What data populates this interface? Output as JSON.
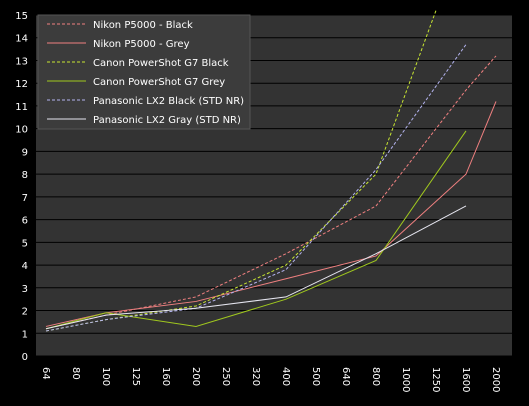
{
  "chart_data": {
    "type": "line",
    "title": "",
    "xlabel": "",
    "ylabel": "",
    "categories": [
      "64",
      "80",
      "100",
      "125",
      "160",
      "200",
      "250",
      "320",
      "400",
      "500",
      "640",
      "800",
      "1000",
      "1250",
      "1600",
      "2000"
    ],
    "ylim": [
      0,
      15
    ],
    "yticks": [
      0,
      1,
      2,
      3,
      4,
      5,
      6,
      7,
      8,
      9,
      10,
      11,
      12,
      13,
      14,
      15
    ],
    "grid": "horizontal",
    "legend_position": "top-left",
    "background": "#333333",
    "series": [
      {
        "name": "Nikon P5000 - Black",
        "color": "#f08080",
        "dashed": true,
        "values": [
          1.2,
          null,
          1.8,
          null,
          null,
          2.6,
          null,
          null,
          4.5,
          null,
          null,
          6.6,
          null,
          null,
          11.7,
          13.2
        ]
      },
      {
        "name": "Nikon P5000 - Grey",
        "color": "#f08080",
        "dashed": false,
        "values": [
          1.3,
          null,
          1.9,
          null,
          null,
          2.4,
          null,
          null,
          3.4,
          null,
          null,
          4.4,
          null,
          null,
          8.0,
          11.2
        ]
      },
      {
        "name": "Canon PowerShot G7 Black",
        "color": "#c8e632",
        "dashed": true,
        "values": [
          1.1,
          null,
          1.6,
          null,
          null,
          2.2,
          null,
          null,
          4.0,
          null,
          null,
          8.0,
          null,
          15.2,
          null,
          null
        ]
      },
      {
        "name": "Canon PowerShot G7 Grey",
        "color": "#a0c81e",
        "dashed": false,
        "values": [
          1.2,
          null,
          1.9,
          null,
          null,
          1.3,
          null,
          null,
          2.5,
          null,
          null,
          4.2,
          null,
          null,
          9.9,
          null
        ]
      },
      {
        "name": "Panasonic LX2 Black (STD NR)",
        "color": "#b4b4f0",
        "dashed": true,
        "values": [
          1.1,
          null,
          1.6,
          null,
          null,
          2.1,
          null,
          null,
          3.8,
          null,
          null,
          8.2,
          null,
          null,
          13.7,
          null
        ]
      },
      {
        "name": "Panasonic LX2 Gray (STD NR)",
        "color": "#e6e6f0",
        "dashed": false,
        "values": [
          1.2,
          null,
          1.8,
          null,
          null,
          2.1,
          null,
          null,
          2.6,
          null,
          null,
          4.5,
          null,
          null,
          6.6,
          null
        ]
      }
    ]
  }
}
